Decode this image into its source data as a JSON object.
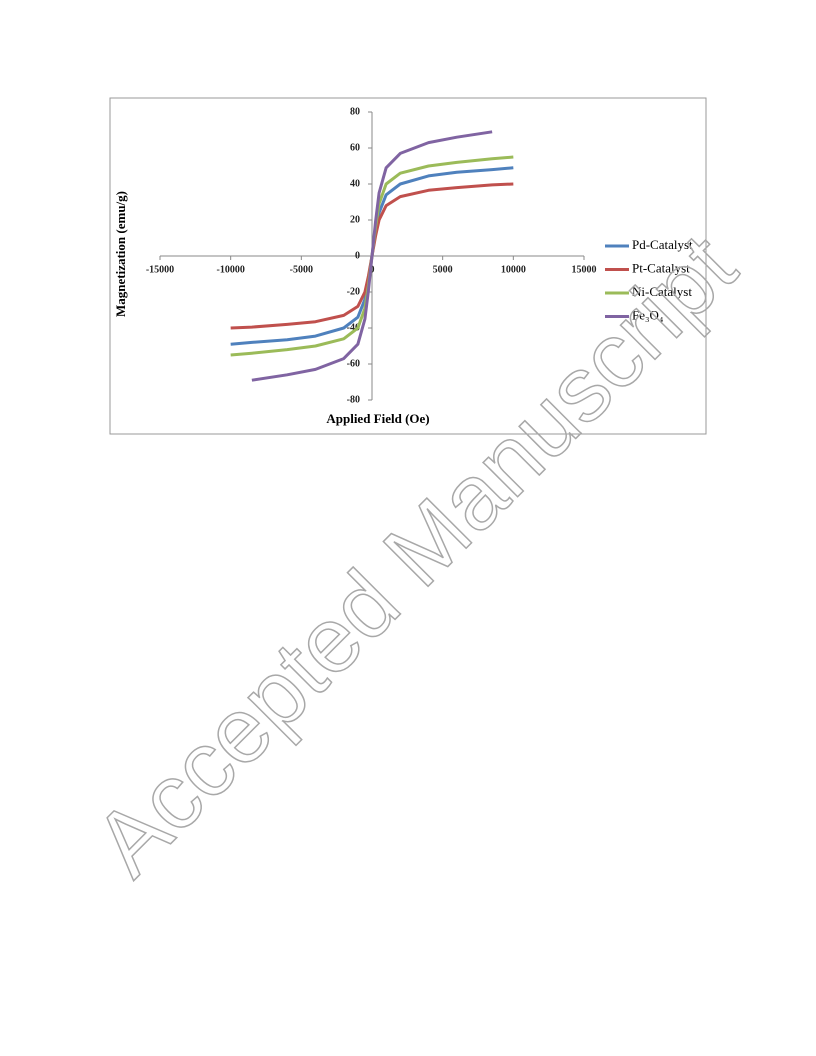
{
  "chart_data": {
    "type": "line",
    "xlabel": "Applied Field (Oe)",
    "ylabel": "Magnetization (emu/g)",
    "x": [
      -10000,
      -8500,
      -6000,
      -4000,
      -2000,
      -1000,
      -500,
      -250,
      0,
      250,
      500,
      1000,
      2000,
      4000,
      6000,
      8500,
      10000
    ],
    "series": [
      {
        "name": "Pd-Catalyst",
        "color": "#4f81bd",
        "values": [
          -49,
          -48,
          -46.5,
          -44.5,
          -40,
          -34,
          -24,
          -13,
          0,
          13,
          24,
          34,
          40,
          44.5,
          46.5,
          48,
          49
        ]
      },
      {
        "name": "Pt-Catalyst",
        "color": "#c0504d",
        "values": [
          -40,
          -39.5,
          -38,
          -36.5,
          -33,
          -28,
          -20,
          -11,
          0,
          11,
          20,
          28,
          33,
          36.5,
          38,
          39.5,
          40
        ]
      },
      {
        "name": "Ni-Catalyst",
        "color": "#9bbb59",
        "values": [
          -55,
          -54,
          -52,
          -50,
          -46,
          -40,
          -29,
          -16,
          0,
          16,
          29,
          40,
          46,
          50,
          52,
          54,
          55
        ]
      },
      {
        "name": "Fe₃O₄",
        "color": "#8064a2",
        "values": [
          null,
          -69,
          -66,
          -63,
          -57,
          -49,
          -35,
          -19,
          0,
          19,
          35,
          49,
          57,
          63,
          66,
          69,
          null
        ]
      }
    ],
    "xlim": [
      -15000,
      15000
    ],
    "xticks": [
      -15000,
      -10000,
      -5000,
      0,
      5000,
      10000,
      15000
    ],
    "ylim": [
      -80,
      80
    ],
    "yticks": [
      -80,
      -60,
      -40,
      -20,
      0,
      20,
      40,
      60,
      80
    ],
    "legend": "right"
  },
  "watermark": "Accepted Manuscript"
}
